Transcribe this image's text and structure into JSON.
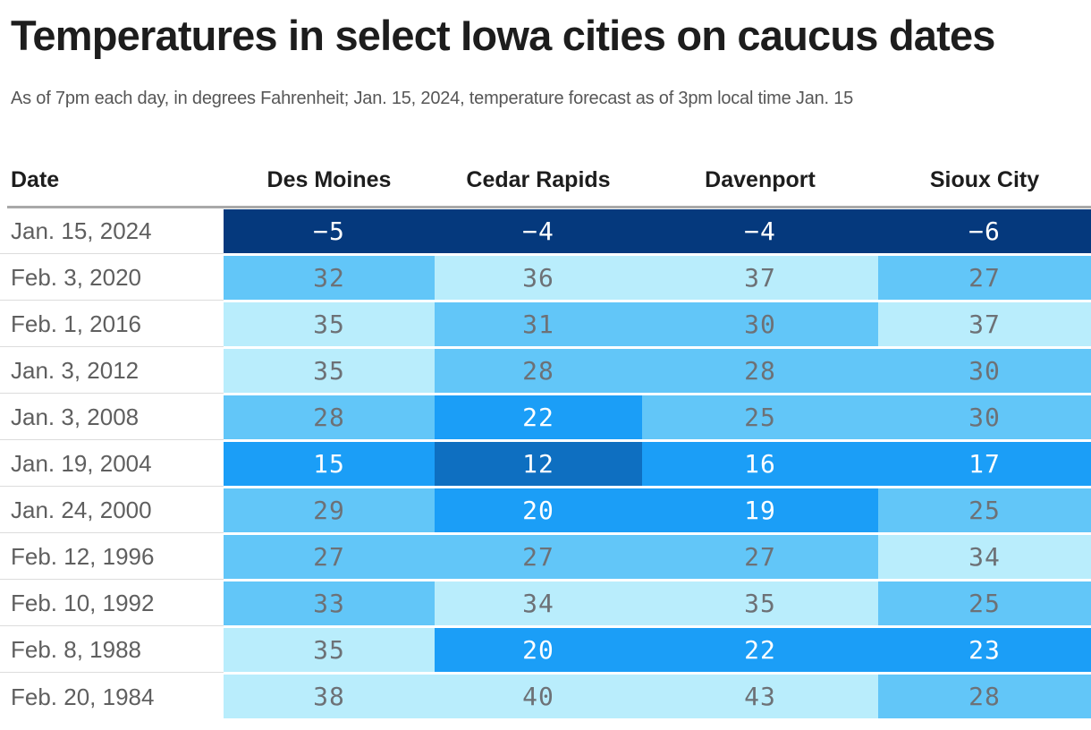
{
  "title": "Temperatures in select Iowa cities on caucus dates",
  "subtitle": "As of 7pm each day, in degrees Fahrenheit; Jan. 15, 2024, temperature forecast as of 3pm local time Jan. 15",
  "chart_data": {
    "type": "heatmap",
    "columns": [
      "Date",
      "Des Moines",
      "Cedar Rapids",
      "Davenport",
      "Sioux City"
    ],
    "rows": [
      {
        "date": "Jan. 15, 2024",
        "values": [
          -5,
          -4,
          -4,
          -6
        ],
        "levels": [
          0,
          0,
          0,
          0
        ]
      },
      {
        "date": "Feb. 3, 2020",
        "values": [
          32,
          36,
          37,
          27
        ],
        "levels": [
          3,
          4,
          4,
          3
        ]
      },
      {
        "date": "Feb. 1, 2016",
        "values": [
          35,
          31,
          30,
          37
        ],
        "levels": [
          4,
          3,
          3,
          4
        ]
      },
      {
        "date": "Jan. 3, 2012",
        "values": [
          35,
          28,
          28,
          30
        ],
        "levels": [
          4,
          3,
          3,
          3
        ]
      },
      {
        "date": "Jan. 3, 2008",
        "values": [
          28,
          22,
          25,
          30
        ],
        "levels": [
          3,
          2,
          3,
          3
        ]
      },
      {
        "date": "Jan. 19, 2004",
        "values": [
          15,
          12,
          16,
          17
        ],
        "levels": [
          2,
          1,
          2,
          2
        ]
      },
      {
        "date": "Jan. 24, 2000",
        "values": [
          29,
          20,
          19,
          25
        ],
        "levels": [
          3,
          2,
          2,
          3
        ]
      },
      {
        "date": "Feb. 12, 1996",
        "values": [
          27,
          27,
          27,
          34
        ],
        "levels": [
          3,
          3,
          3,
          4
        ]
      },
      {
        "date": "Feb. 10, 1992",
        "values": [
          33,
          34,
          35,
          25
        ],
        "levels": [
          3,
          4,
          4,
          3
        ]
      },
      {
        "date": "Feb. 8, 1988",
        "values": [
          35,
          20,
          22,
          23
        ],
        "levels": [
          4,
          2,
          2,
          2
        ]
      },
      {
        "date": "Feb. 20, 1984",
        "values": [
          38,
          40,
          43,
          28
        ],
        "levels": [
          4,
          4,
          4,
          3
        ]
      }
    ],
    "palette": [
      "#05397d",
      "#0e6fc1",
      "#1b9ef7",
      "#62c6f8",
      "#b9edfc"
    ],
    "text_colors": {
      "on_dark_cell": "#ffffff",
      "on_light_cell": "#6d7176"
    },
    "legend_position": "none",
    "grid": false
  }
}
